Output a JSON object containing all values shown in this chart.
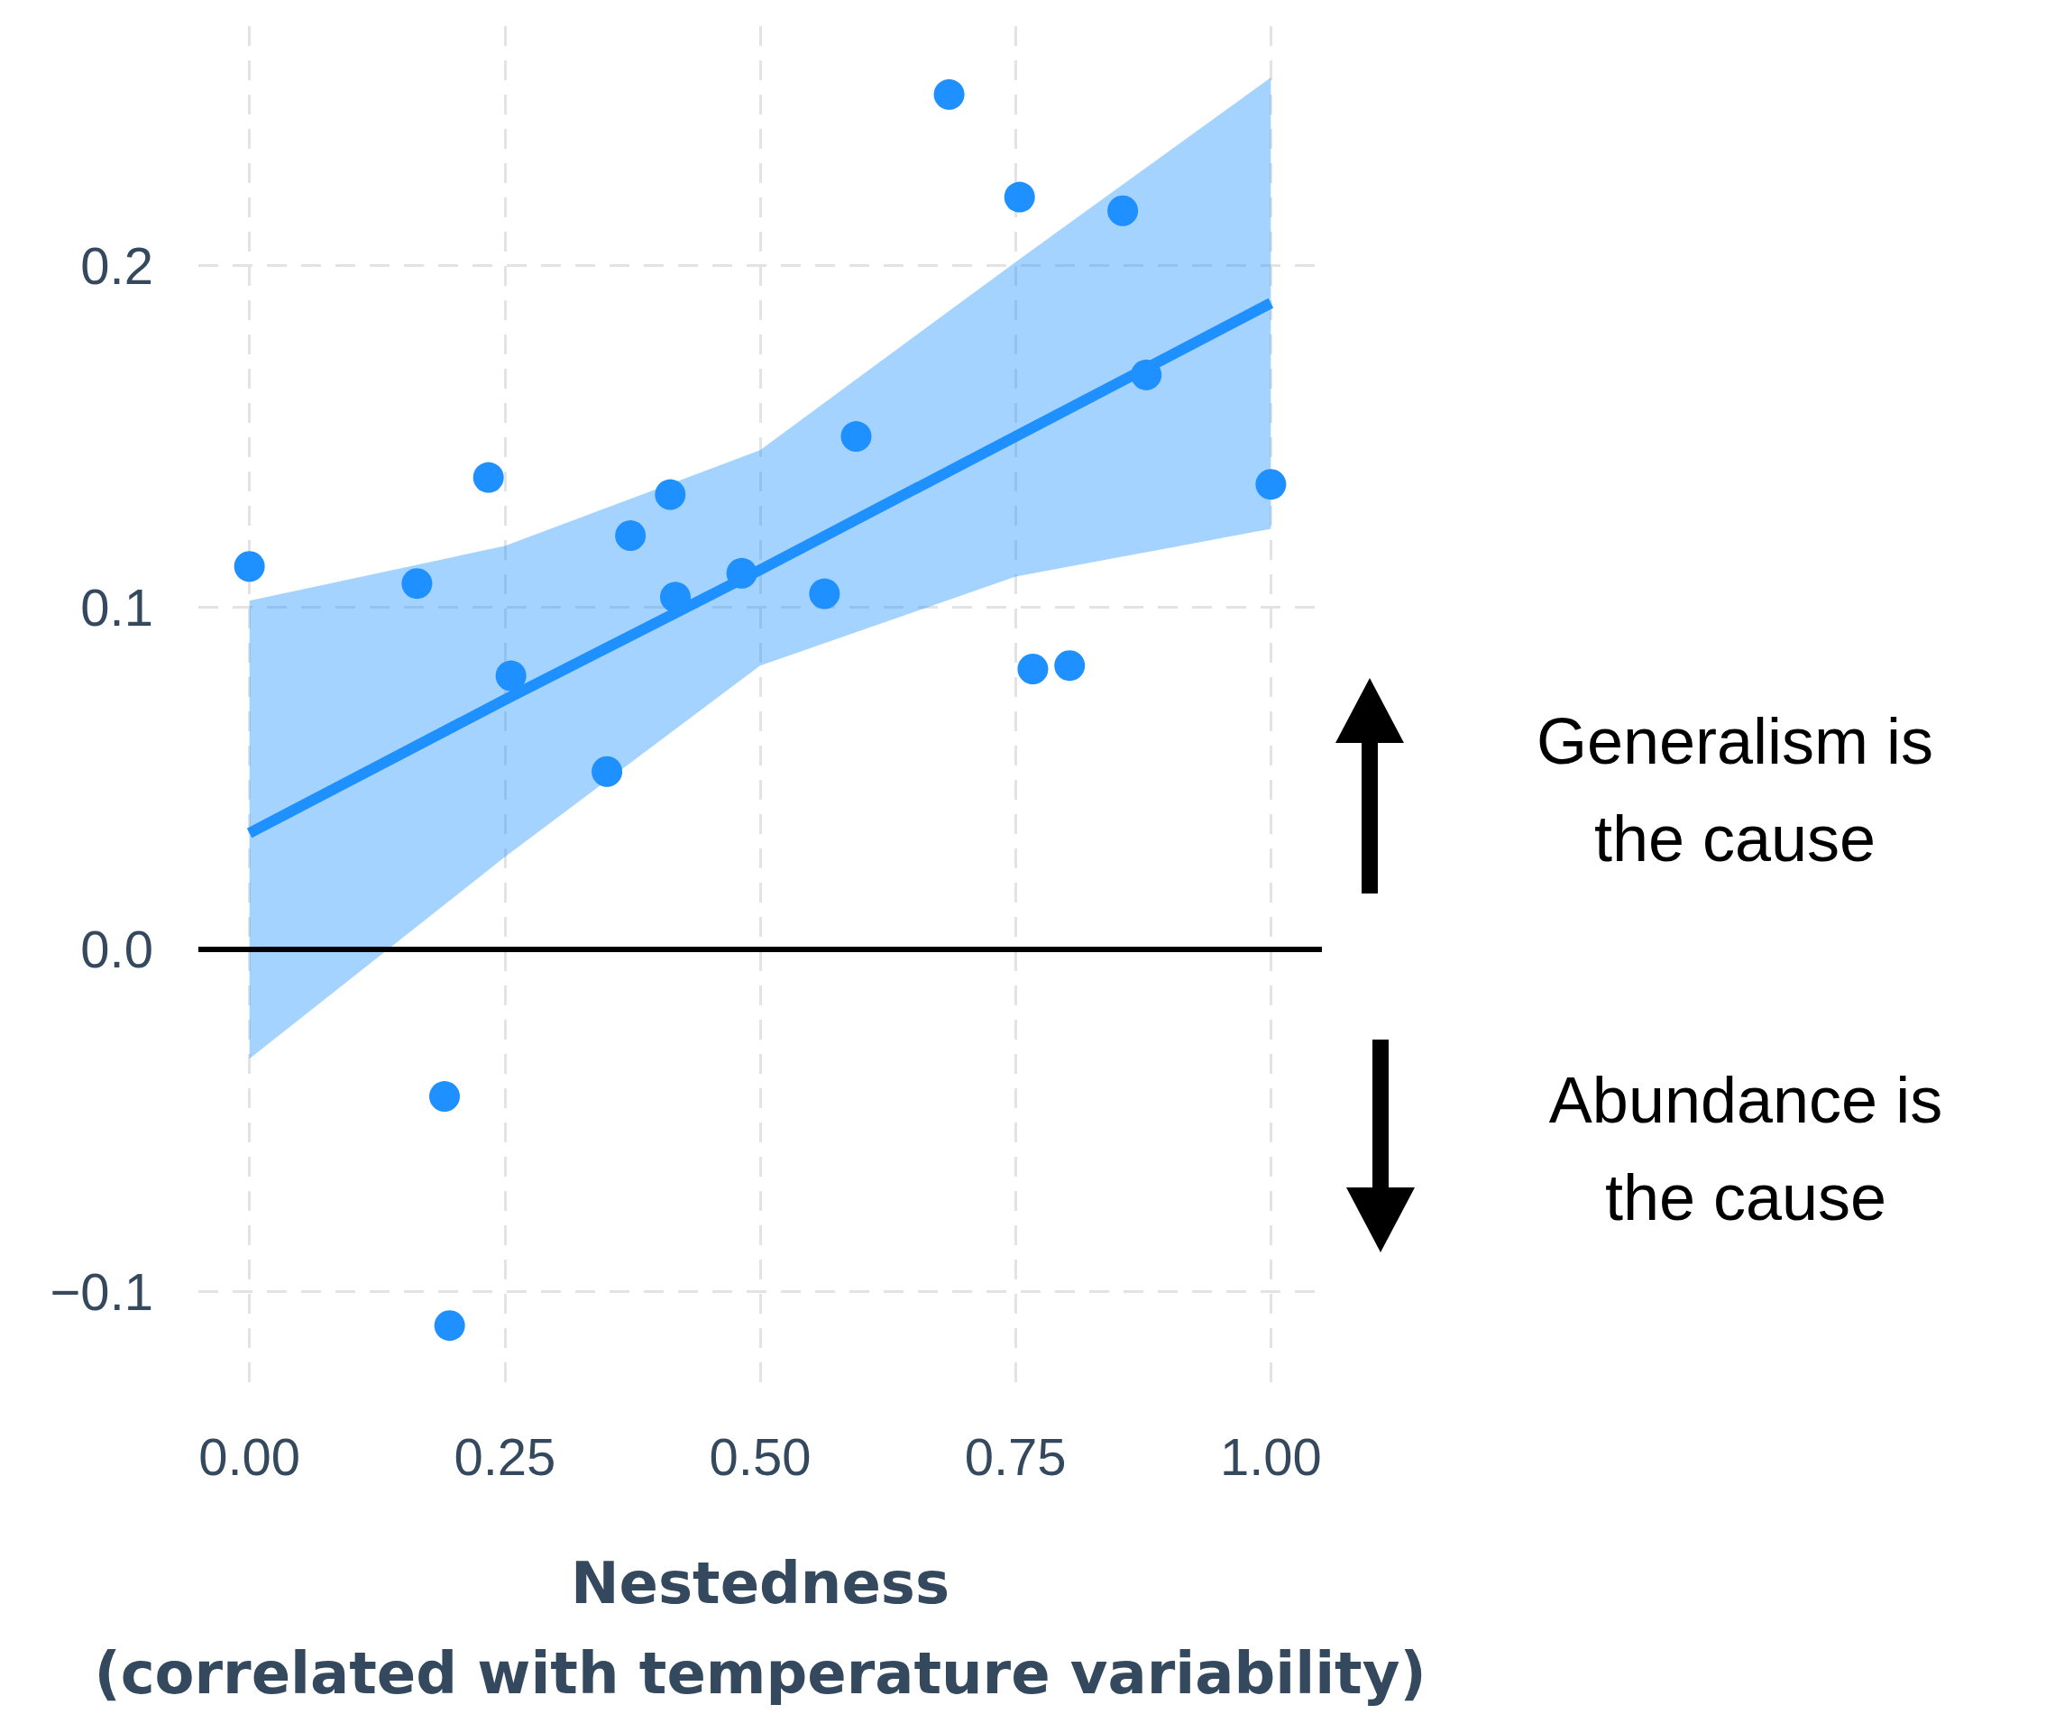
{
  "chart_data": {
    "type": "scatter",
    "xlabel": "Nestedness\n(correlated with temperature variability)",
    "annotations": [
      "Generalism is the cause",
      "Abundance is the cause"
    ],
    "series": [
      {
        "color": "#1e90ff",
        "x": [
          0,
          0.164,
          0.234,
          0.256,
          0.35,
          0.373,
          0.412,
          0.417,
          0.482,
          0.563,
          0.594,
          0.685,
          0.754,
          0.767,
          0.803,
          0.855,
          0.878,
          1.0,
          0.191,
          0.196
        ],
        "values": [
          0.112,
          0.107,
          0.138,
          0.08,
          0.052,
          0.121,
          0.133,
          0.103,
          0.11,
          0.104,
          0.15,
          0.25,
          0.22,
          0.082,
          0.083,
          0.216,
          0.168,
          0.136,
          -0.043,
          -0.11
        ]
      },
      {
        "type": "line",
        "color": "#1e90ff",
        "marker": "none",
        "x": [
          0,
          0.25,
          0.5,
          0.75,
          1.0
        ],
        "values": [
          0.034,
          0.073,
          0.111,
          0.15,
          0.189
        ],
        "lower": [
          -0.032,
          0.027,
          0.083,
          0.109,
          0.123
        ],
        "upper": [
          0.102,
          0.118,
          0.146,
          0.201,
          0.255
        ]
      }
    ],
    "xlim": [
      -0.05,
      1.05
    ],
    "ylim": [
      -0.13,
      0.27
    ],
    "xticks": [
      {
        "value": 0,
        "label": "0.00"
      },
      0.25,
      {
        "value": 0.5,
        "label": "0.50"
      },
      0.75,
      {
        "value": 1,
        "label": "1.00"
      }
    ],
    "yticks": [
      {
        "value": -0.1,
        "label": "−0.1"
      },
      {
        "value": 0,
        "label": "0.0"
      },
      0.1,
      0.2
    ],
    "ref_lines": [
      {
        "axis": "y",
        "value": 0,
        "color": "#000000"
      }
    ],
    "grid": true,
    "marker": "circle"
  }
}
